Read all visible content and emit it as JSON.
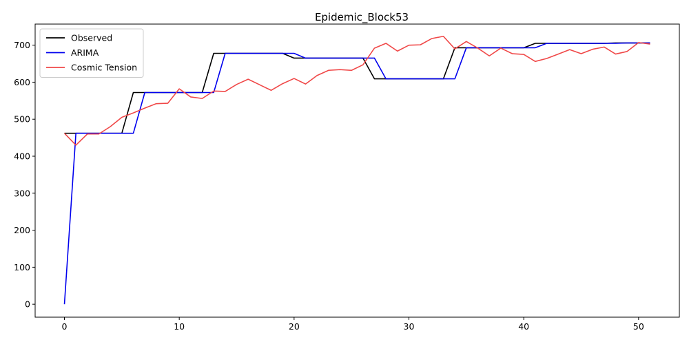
{
  "chart_data": {
    "type": "line",
    "title": "Epidemic_Block53",
    "xlabel": "",
    "ylabel": "",
    "xlim": [
      -2.55,
      53.55
    ],
    "ylim": [
      -35,
      757
    ],
    "xticks": [
      0,
      10,
      20,
      30,
      40,
      50
    ],
    "yticks": [
      0,
      100,
      200,
      300,
      400,
      500,
      600,
      700
    ],
    "grid": false,
    "legend_position": "top-left",
    "x": [
      0,
      1,
      2,
      3,
      4,
      5,
      6,
      7,
      8,
      9,
      10,
      11,
      12,
      13,
      14,
      15,
      16,
      17,
      18,
      19,
      20,
      21,
      22,
      23,
      24,
      25,
      26,
      27,
      28,
      29,
      30,
      31,
      32,
      33,
      34,
      35,
      36,
      37,
      38,
      39,
      40,
      41,
      42,
      43,
      44,
      45,
      46,
      47,
      48,
      49,
      50,
      51
    ],
    "series": [
      {
        "name": "Observed",
        "color": "#000000",
        "values": [
          462,
          462,
          462,
          462,
          462,
          462,
          572,
          572,
          572,
          572,
          572,
          572,
          572,
          678,
          678,
          678,
          678,
          678,
          678,
          678,
          665,
          665,
          665,
          665,
          665,
          665,
          665,
          609,
          609,
          609,
          609,
          609,
          609,
          609,
          693,
          693,
          693,
          693,
          693,
          693,
          693,
          705,
          705,
          705,
          705,
          705,
          705,
          705,
          706,
          706,
          706,
          706
        ]
      },
      {
        "name": "ARIMA",
        "color": "#0000ee",
        "values": [
          0,
          462,
          462,
          462,
          462,
          462,
          462,
          572,
          572,
          572,
          572,
          572,
          572,
          572,
          678,
          678,
          678,
          678,
          678,
          678,
          678,
          665,
          665,
          665,
          665,
          665,
          665,
          665,
          609,
          609,
          609,
          609,
          609,
          609,
          609,
          693,
          693,
          693,
          693,
          693,
          693,
          693,
          705,
          705,
          705,
          705,
          705,
          705,
          705,
          706,
          706,
          706
        ]
      },
      {
        "name": "Cosmic Tension",
        "color": "#f04848",
        "values": [
          462,
          430,
          460,
          460,
          480,
          505,
          517,
          530,
          542,
          543,
          582,
          560,
          556,
          576,
          575,
          594,
          608,
          593,
          578,
          596,
          610,
          595,
          618,
          632,
          634,
          632,
          647,
          692,
          705,
          684,
          700,
          701,
          718,
          724,
          690,
          710,
          692,
          671,
          692,
          677,
          675,
          656,
          664,
          676,
          688,
          677,
          689,
          695,
          676,
          683,
          707,
          703
        ]
      }
    ]
  }
}
